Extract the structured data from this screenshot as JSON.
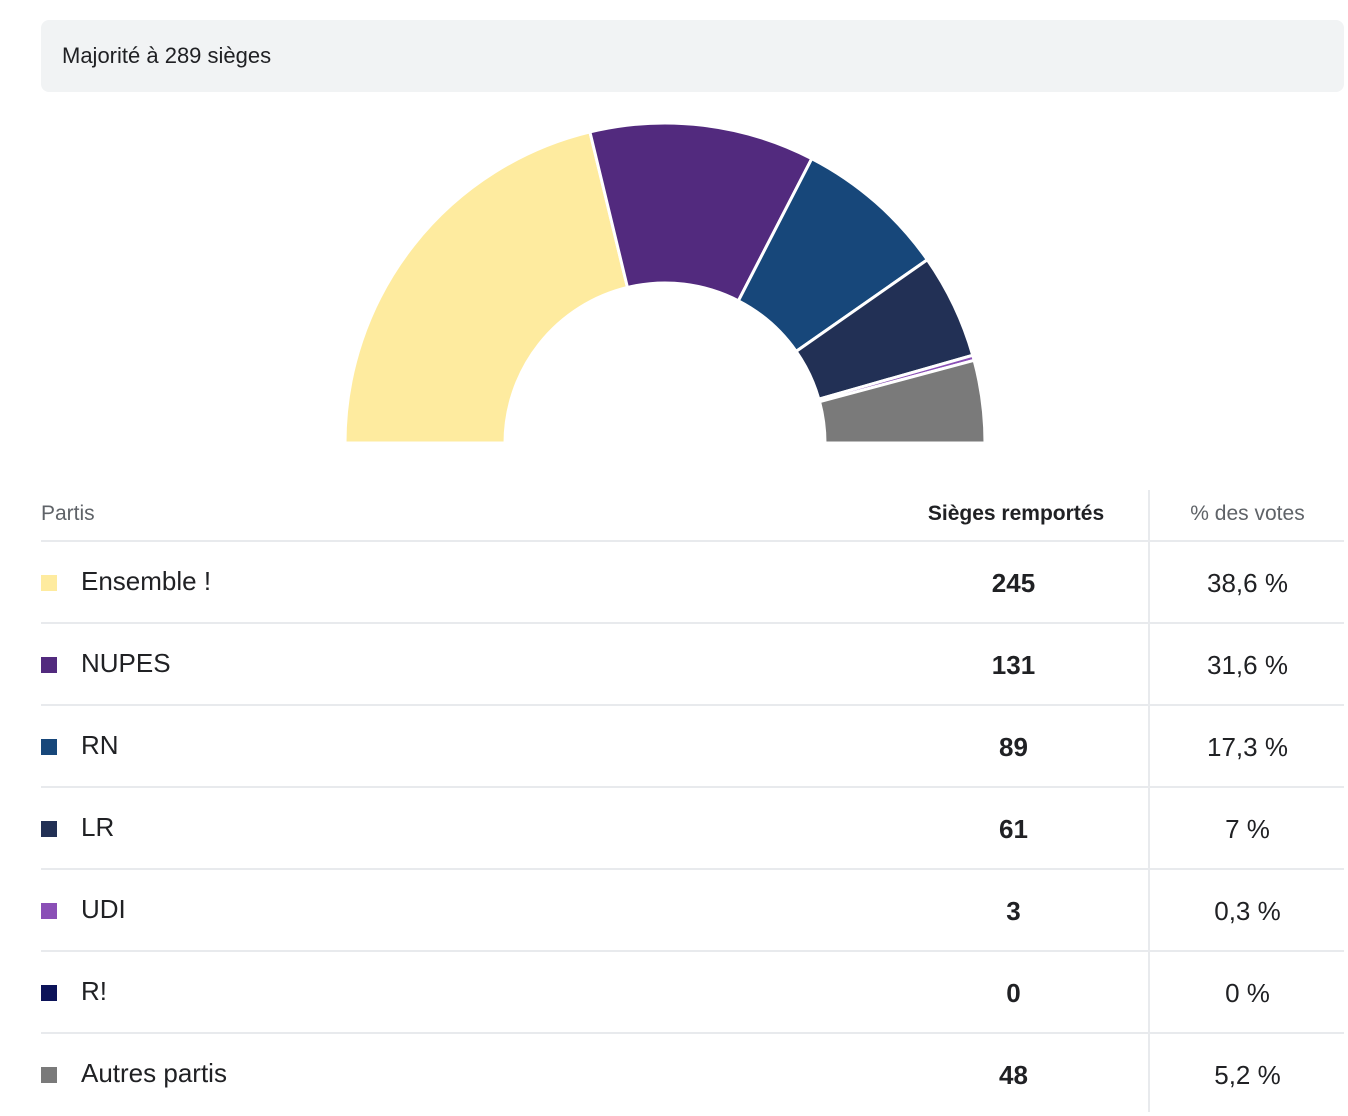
{
  "banner": {
    "text": "Majorité à 289 sièges"
  },
  "table": {
    "headers": {
      "party": "Partis",
      "seats": "Sièges remportés",
      "votes": "% des votes"
    }
  },
  "chart_data": {
    "type": "pie",
    "variant": "half-donut",
    "categories": [
      "Ensemble !",
      "NUPES",
      "RN",
      "LR",
      "UDI",
      "R!",
      "Autres partis"
    ],
    "values": [
      245,
      131,
      89,
      61,
      3,
      0,
      48
    ],
    "vote_share": [
      "38,6 %",
      "31,6 %",
      "17,3 %",
      "7 %",
      "0,3 %",
      "0 %",
      "5,2 %"
    ],
    "colors": [
      "#feeb9f",
      "#522a7e",
      "#17477a",
      "#223055",
      "#8a4fb6",
      "#0c1359",
      "#7a7a7a"
    ]
  }
}
